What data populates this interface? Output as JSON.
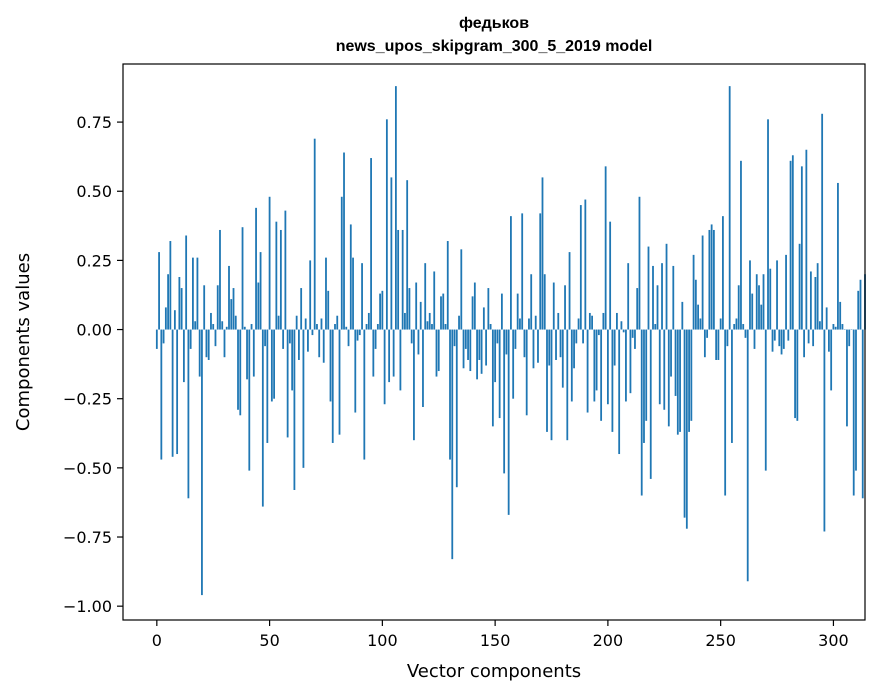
{
  "chart_data": {
    "type": "bar",
    "title": "федьков",
    "subtitle": "news_upos_skipgram_300_5_2019 model",
    "xlabel": "Vector components",
    "ylabel": "Components values",
    "xlim": [
      -15,
      314
    ],
    "ylim": [
      -1.05,
      0.96
    ],
    "xticks": [
      0,
      50,
      100,
      150,
      200,
      250,
      300
    ],
    "xtick_labels": [
      "0",
      "50",
      "100",
      "150",
      "200",
      "250",
      "300"
    ],
    "yticks": [
      -1.0,
      -0.75,
      -0.5,
      -0.25,
      0.0,
      0.25,
      0.5,
      0.75
    ],
    "ytick_labels": [
      "−1.00",
      "−0.75",
      "−0.50",
      "−0.25",
      "0.00",
      "0.25",
      "0.50",
      "0.75"
    ],
    "bar_color": "#1f77b4",
    "grid": false,
    "values": [
      -0.07,
      0.28,
      -0.47,
      -0.05,
      0.08,
      0.2,
      0.32,
      -0.46,
      0.07,
      -0.45,
      0.19,
      0.15,
      -0.19,
      0.34,
      -0.61,
      -0.07,
      0.26,
      0.03,
      0.26,
      -0.17,
      -0.96,
      0.16,
      -0.1,
      -0.11,
      0.06,
      0.02,
      -0.06,
      0.16,
      0.36,
      0.03,
      -0.1,
      0.01,
      0.23,
      0.11,
      0.15,
      0.05,
      -0.29,
      -0.31,
      0.37,
      0.01,
      -0.18,
      -0.51,
      0.02,
      -0.17,
      0.44,
      0.17,
      0.28,
      -0.64,
      -0.06,
      -0.41,
      0.48,
      -0.26,
      -0.25,
      0.39,
      0.05,
      0.36,
      -0.07,
      0.43,
      -0.39,
      -0.05,
      -0.22,
      -0.58,
      0.05,
      -0.11,
      0.15,
      -0.5,
      0.04,
      -0.08,
      0.25,
      -0.02,
      0.69,
      0.02,
      -0.1,
      0.04,
      -0.12,
      0.26,
      0.14,
      -0.26,
      -0.41,
      0.02,
      0.05,
      -0.38,
      0.48,
      0.64,
      0.01,
      -0.06,
      0.38,
      0.26,
      -0.3,
      -0.04,
      -0.02,
      0.24,
      -0.47,
      0.02,
      0.06,
      0.62,
      -0.17,
      -0.07,
      0.02,
      0.13,
      0.14,
      -0.27,
      0.76,
      -0.19,
      0.55,
      -0.17,
      0.88,
      0.36,
      -0.22,
      0.36,
      0.06,
      0.54,
      0.15,
      -0.05,
      -0.4,
      0.17,
      -0.09,
      0.1,
      -0.28,
      0.24,
      0.03,
      0.06,
      0.02,
      0.21,
      -0.17,
      -0.15,
      0.12,
      0.13,
      0.02,
      0.32,
      -0.47,
      -0.83,
      -0.06,
      -0.57,
      0.05,
      0.29,
      -0.14,
      -0.07,
      -0.11,
      -0.15,
      0.12,
      0.17,
      -0.18,
      -0.11,
      -0.16,
      0.08,
      -0.13,
      0.15,
      0.02,
      -0.35,
      -0.19,
      -0.05,
      -0.32,
      0.13,
      -0.52,
      -0.09,
      -0.67,
      0.41,
      -0.25,
      -0.07,
      0.13,
      0.04,
      0.42,
      -0.1,
      -0.31,
      0.04,
      0.2,
      -0.14,
      0.05,
      -0.12,
      0.42,
      0.55,
      0.2,
      -0.37,
      -0.13,
      -0.4,
      0.17,
      -0.11,
      0.06,
      -0.1,
      -0.21,
      0.16,
      -0.4,
      0.28,
      -0.26,
      -0.14,
      -0.05,
      0.04,
      0.45,
      -0.05,
      0.47,
      -0.3,
      0.06,
      0.05,
      -0.26,
      -0.22,
      -0.02,
      -0.33,
      0.06,
      0.59,
      -0.27,
      0.39,
      -0.37,
      -0.13,
      0.06,
      -0.45,
      0.03,
      -0.01,
      -0.26,
      0.24,
      -0.23,
      -0.03,
      -0.07,
      0.15,
      0.48,
      -0.6,
      -0.41,
      -0.33,
      0.3,
      -0.54,
      0.23,
      0.02,
      0.16,
      -0.27,
      0.24,
      -0.29,
      0.31,
      -0.35,
      -0.17,
      0.23,
      -0.24,
      -0.38,
      -0.37,
      0.1,
      -0.68,
      -0.72,
      -0.37,
      -0.33,
      0.27,
      0.18,
      0.09,
      0.04,
      0.34,
      -0.1,
      -0.03,
      0.36,
      0.38,
      0.36,
      -0.11,
      -0.11,
      0.04,
      0.41,
      -0.6,
      -0.06,
      0.88,
      -0.41,
      0.02,
      0.04,
      0.16,
      0.61,
      0.02,
      -0.03,
      -0.91,
      0.25,
      0.13,
      -0.07,
      0.2,
      0.16,
      0.09,
      0.2,
      -0.51,
      0.76,
      0.22,
      -0.08,
      -0.04,
      0.25,
      -0.06,
      -0.09,
      -0.07,
      0.27,
      -0.04,
      0.61,
      0.63,
      -0.32,
      -0.33,
      0.31,
      0.59,
      -0.1,
      0.65,
      -0.05,
      0.21,
      -0.06,
      0.19,
      0.24,
      0.03,
      0.78,
      -0.73,
      0.08,
      -0.08,
      -0.22,
      0.02,
      0.01,
      0.53,
      0.1,
      0.02,
      0.0,
      -0.35,
      -0.06,
      0.0,
      -0.6,
      -0.51,
      0.14,
      0.18,
      -0.61,
      0.2
    ]
  }
}
